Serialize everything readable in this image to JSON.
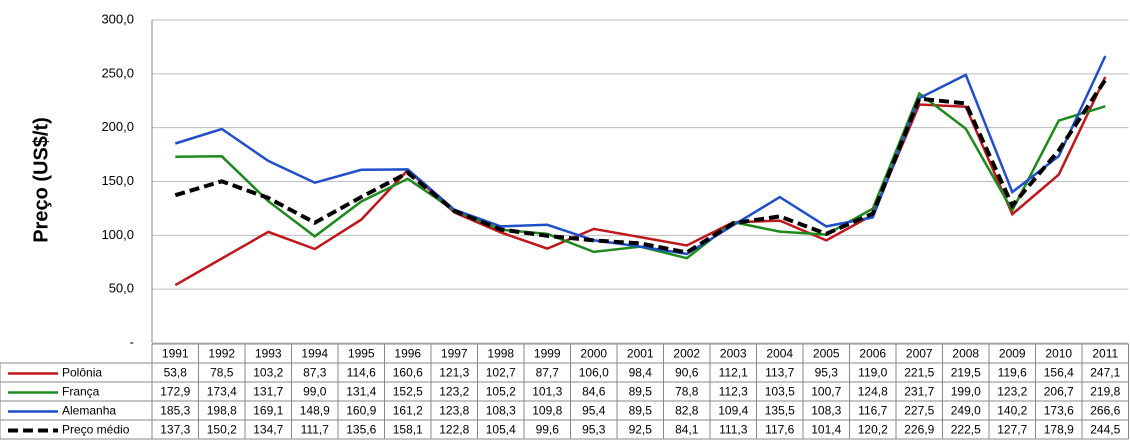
{
  "chart_data": {
    "type": "line",
    "y_label": "Preço (US$/t)",
    "categories": [
      "1991",
      "1992",
      "1993",
      "1994",
      "1995",
      "1996",
      "1997",
      "1998",
      "1999",
      "2000",
      "2001",
      "2002",
      "2003",
      "2004",
      "2005",
      "2006",
      "2007",
      "2008",
      "2009",
      "2010",
      "2011"
    ],
    "ylim": [
      0,
      300
    ],
    "yticks": [
      {
        "value": 0,
        "label": "-"
      },
      {
        "value": 50,
        "label": "50,0"
      },
      {
        "value": 100,
        "label": "100,0"
      },
      {
        "value": 150,
        "label": "150,0"
      },
      {
        "value": 200,
        "label": "200,0"
      },
      {
        "value": 250,
        "label": "250,0"
      },
      {
        "value": 300,
        "label": "300,0"
      }
    ],
    "grid": true,
    "series": [
      {
        "name": "Polônia",
        "color": "#c0171c",
        "dashed": false,
        "values": [
          53.8,
          78.5,
          103.2,
          87.3,
          114.6,
          160.6,
          121.3,
          102.7,
          87.7,
          106.0,
          98.4,
          90.6,
          112.1,
          113.7,
          95.3,
          119.0,
          221.5,
          219.5,
          119.6,
          156.4,
          247.1
        ],
        "value_labels": [
          "53,8",
          "78,5",
          "103,2",
          "87,3",
          "114,6",
          "160,6",
          "121,3",
          "102,7",
          "87,7",
          "106,0",
          "98,4",
          "90,6",
          "112,1",
          "113,7",
          "95,3",
          "119,0",
          "221,5",
          "219,5",
          "119,6",
          "156,4",
          "247,1"
        ]
      },
      {
        "name": "França",
        "color": "#1e8a1e",
        "dashed": false,
        "values": [
          172.9,
          173.4,
          131.7,
          99.0,
          131.4,
          152.5,
          123.2,
          105.2,
          101.3,
          84.6,
          89.5,
          78.8,
          112.3,
          103.5,
          100.7,
          124.8,
          231.7,
          199.0,
          123.2,
          206.7,
          219.8
        ],
        "value_labels": [
          "172,9",
          "173,4",
          "131,7",
          "99,0",
          "131,4",
          "152,5",
          "123,2",
          "105,2",
          "101,3",
          "84,6",
          "89,5",
          "78,8",
          "112,3",
          "103,5",
          "100,7",
          "124,8",
          "231,7",
          "199,0",
          "123,2",
          "206,7",
          "219,8"
        ]
      },
      {
        "name": "Alemanha",
        "color": "#1f4fc9",
        "dashed": false,
        "values": [
          185.3,
          198.8,
          169.1,
          148.9,
          160.9,
          161.2,
          123.8,
          108.3,
          109.8,
          95.4,
          89.5,
          82.8,
          109.4,
          135.5,
          108.3,
          116.7,
          227.5,
          249.0,
          140.2,
          173.6,
          266.6
        ],
        "value_labels": [
          "185,3",
          "198,8",
          "169,1",
          "148,9",
          "160,9",
          "161,2",
          "123,8",
          "108,3",
          "109,8",
          "95,4",
          "89,5",
          "82,8",
          "109,4",
          "135,5",
          "108,3",
          "116,7",
          "227,5",
          "249,0",
          "140,2",
          "173,6",
          "266,6"
        ]
      },
      {
        "name": "Preço médio",
        "color": "#000000",
        "dashed": true,
        "values": [
          137.3,
          150.2,
          134.7,
          111.7,
          135.6,
          158.1,
          122.8,
          105.4,
          99.6,
          95.3,
          92.5,
          84.1,
          111.3,
          117.6,
          101.4,
          120.2,
          226.9,
          222.5,
          127.7,
          178.9,
          244.5
        ],
        "value_labels": [
          "137,3",
          "150,2",
          "134,7",
          "111,7",
          "135,6",
          "158,1",
          "122,8",
          "105,4",
          "99,6",
          "95,3",
          "92,5",
          "84,1",
          "111,3",
          "117,6",
          "101,4",
          "120,2",
          "226,9",
          "222,5",
          "127,7",
          "178,9",
          "244,5"
        ]
      }
    ]
  }
}
